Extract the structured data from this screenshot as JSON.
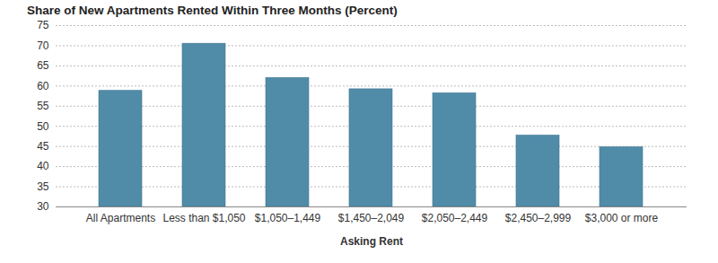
{
  "chart_data": {
    "type": "bar",
    "title": "Share of New Apartments Rented Within Three Months (Percent)",
    "xlabel": "Asking Rent",
    "categories": [
      "All Apartments",
      "Less than $1,050",
      "$1,050–1,449",
      "$1,450–2,049",
      "$2,050–2,449",
      "$2,450–2,999",
      "$3,000 or more"
    ],
    "values": [
      58.8,
      70.5,
      62.0,
      59.2,
      58.2,
      47.7,
      44.8
    ],
    "color": "#508ca8",
    "ylim": [
      30,
      75
    ],
    "yticks": [
      30,
      35,
      40,
      45,
      50,
      55,
      60,
      65,
      70,
      75
    ],
    "grid": true
  }
}
